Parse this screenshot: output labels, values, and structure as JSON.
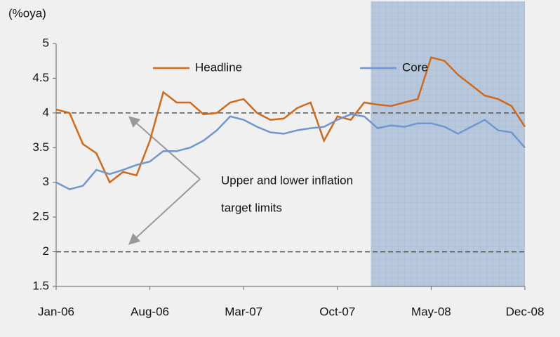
{
  "chart_data": {
    "type": "line",
    "y_label": "(%oya)",
    "categories": [
      "Jan-06",
      null,
      null,
      null,
      null,
      null,
      null,
      "Aug-06",
      null,
      null,
      null,
      null,
      null,
      null,
      "Mar-07",
      null,
      null,
      null,
      null,
      null,
      null,
      "Oct-07",
      null,
      null,
      null,
      null,
      null,
      null,
      "May-08",
      null,
      null,
      null,
      null,
      null,
      null,
      "Dec-08"
    ],
    "series": [
      {
        "name": "Headline",
        "color": "#d06a1a",
        "values": [
          4.05,
          4.0,
          3.55,
          3.42,
          3.0,
          3.15,
          3.1,
          3.6,
          4.3,
          4.15,
          4.15,
          3.98,
          4.0,
          4.15,
          4.2,
          4.0,
          3.9,
          3.92,
          4.07,
          4.15,
          3.6,
          3.95,
          3.9,
          4.15,
          4.12,
          4.1,
          4.15,
          4.2,
          4.8,
          4.75,
          4.55,
          4.4,
          4.25,
          4.2,
          4.1,
          3.8
        ]
      },
      {
        "name": "Core",
        "color": "#6f96d0",
        "values": [
          3.0,
          2.9,
          2.95,
          3.18,
          3.12,
          3.18,
          3.25,
          3.3,
          3.45,
          3.45,
          3.5,
          3.6,
          3.75,
          3.95,
          3.9,
          3.8,
          3.72,
          3.7,
          3.75,
          3.78,
          3.8,
          3.9,
          3.98,
          3.95,
          3.78,
          3.82,
          3.8,
          3.85,
          3.85,
          3.8,
          3.7,
          3.8,
          3.9,
          3.75,
          3.72,
          3.5
        ]
      }
    ],
    "ylim": [
      1.5,
      5
    ],
    "yticks": [
      1.5,
      2,
      2.5,
      3,
      3.5,
      4,
      4.5,
      5
    ],
    "reference_lines": [
      4,
      2
    ],
    "shaded_region": {
      "from": 23.5,
      "to": 35
    },
    "annotation": [
      "Upper and lower inflation",
      "target limits"
    ]
  }
}
